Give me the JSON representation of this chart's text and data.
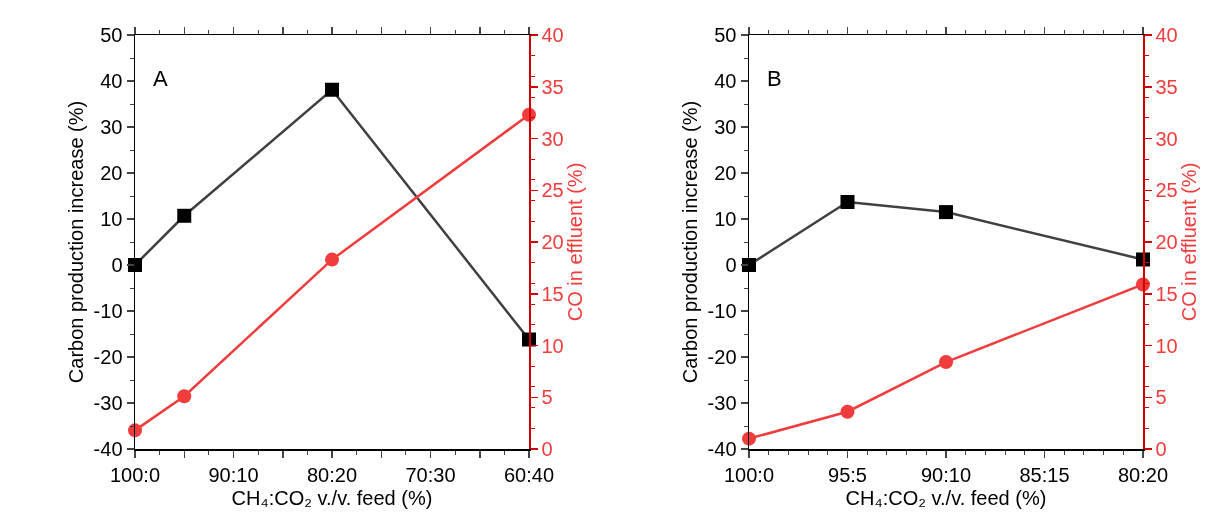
{
  "chart_data": [
    {
      "type": "line",
      "xlabel": "CH₄:CO₂ v./v. feed (%)",
      "ylabel": "Carbon production increase (%)",
      "y2label": "CO in effluent (%)",
      "annotations": [
        "A"
      ],
      "categories": [
        "100:0",
        null,
        "90:10",
        null,
        "80:20",
        null,
        "70:30",
        null,
        "60:40"
      ],
      "ylim": [
        -40,
        50
      ],
      "yticks": [
        -40,
        -30,
        -20,
        -10,
        0,
        10,
        20,
        30,
        40,
        50
      ],
      "y2lim": [
        0,
        40
      ],
      "y2ticks": [
        0,
        5,
        10,
        15,
        20,
        25,
        30,
        35,
        40
      ],
      "grid": false,
      "line_style": "solid",
      "series": [
        {
          "color": "#404040",
          "marker": "square",
          "values": [
            0,
            10.7,
            null,
            null,
            38.1,
            null,
            null,
            null,
            -16.2
          ]
        },
        {
          "color": "#f03c3c",
          "marker": "circle",
          "axis": "y2",
          "values": [
            1.8,
            5.1,
            null,
            null,
            18.3,
            null,
            null,
            null,
            32.3
          ]
        }
      ]
    },
    {
      "type": "line",
      "xlabel": "CH₄:CO₂ v./v. feed (%)",
      "ylabel": "Carbon production increase (%)",
      "y2label": "CO in effluent (%)",
      "annotations": [
        "B"
      ],
      "categories": [
        "100:0",
        "95:5",
        "90:10",
        "85:15",
        "80:20"
      ],
      "ylim": [
        -40,
        50
      ],
      "yticks": [
        -40,
        -30,
        -20,
        -10,
        0,
        10,
        20,
        30,
        40,
        50
      ],
      "y2lim": [
        0,
        40
      ],
      "y2ticks": [
        0,
        5,
        10,
        15,
        20,
        25,
        30,
        35,
        40
      ],
      "grid": false,
      "line_style": "solid",
      "series": [
        {
          "color": "#404040",
          "marker": "square",
          "values": [
            0,
            13.7,
            11.5,
            null,
            1.2
          ]
        },
        {
          "color": "#f03c3c",
          "marker": "circle",
          "axis": "y2",
          "values": [
            1.0,
            3.6,
            8.4,
            null,
            15.9
          ]
        }
      ]
    }
  ]
}
